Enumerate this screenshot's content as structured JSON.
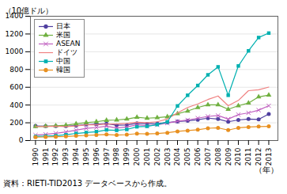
{
  "chart_data": {
    "type": "line",
    "x": [
      1990,
      1991,
      1992,
      1993,
      1994,
      1995,
      1996,
      1997,
      1998,
      1999,
      2000,
      2001,
      2002,
      2003,
      2004,
      2005,
      2006,
      2007,
      2008,
      2009,
      2010,
      2011,
      2012,
      2013
    ],
    "series": [
      {
        "name": "日本",
        "color": "#5040a0",
        "marker": "circle",
        "values": [
          165,
          162,
          162,
          162,
          168,
          180,
          185,
          190,
          172,
          175,
          195,
          188,
          192,
          202,
          215,
          222,
          235,
          252,
          242,
          212,
          232,
          242,
          238,
          298
        ]
      },
      {
        "name": "米国",
        "color": "#70b040",
        "marker": "triangle",
        "values": [
          158,
          162,
          166,
          172,
          188,
          202,
          212,
          228,
          232,
          242,
          262,
          252,
          258,
          268,
          302,
          332,
          372,
          402,
          402,
          352,
          392,
          422,
          492,
          512
        ]
      },
      {
        "name": "ASEAN",
        "color": "#c060c0",
        "marker": "x",
        "values": [
          62,
          70,
          82,
          97,
          117,
          137,
          147,
          162,
          142,
          152,
          177,
          167,
          177,
          197,
          217,
          232,
          252,
          272,
          282,
          242,
          292,
          312,
          342,
          392
        ]
      },
      {
        "name": "ドイツ",
        "color": "#f08080",
        "marker": "none",
        "values": [
          158,
          158,
          162,
          157,
          164,
          177,
          177,
          187,
          187,
          192,
          207,
          202,
          212,
          242,
          312,
          372,
          412,
          462,
          502,
          392,
          452,
          562,
          572,
          602
        ]
      },
      {
        "name": "中国",
        "color": "#00b0b0",
        "marker": "square",
        "values": [
          45,
          50,
          55,
          65,
          80,
          90,
          100,
          120,
          115,
          125,
          155,
          160,
          180,
          210,
          390,
          510,
          620,
          740,
          830,
          510,
          840,
          1010,
          1160,
          1210
        ]
      },
      {
        "name": "韓国",
        "color": "#e89020",
        "marker": "circle",
        "values": [
          38,
          40,
          43,
          46,
          53,
          58,
          63,
          68,
          62,
          67,
          78,
          75,
          80,
          88,
          103,
          112,
          122,
          138,
          143,
          118,
          143,
          152,
          158,
          160
        ]
      }
    ],
    "ylabel": "（10億ドル）",
    "xlabel": "（年）",
    "footnote": "資料：RIETI-TID2013 データベースから作成。",
    "xlim": [
      1989.5,
      2013.9
    ],
    "xticks": [
      1990,
      1991,
      1992,
      1993,
      1994,
      1995,
      1996,
      1997,
      1998,
      1999,
      2000,
      2001,
      2002,
      2003,
      2004,
      2005,
      2006,
      2007,
      2008,
      2009,
      2010,
      2011,
      2012,
      2013
    ],
    "ylim": [
      0,
      1400
    ],
    "yticks": [
      0,
      200,
      400,
      600,
      800,
      1000,
      1200,
      1400
    ],
    "grid": "y",
    "legend": "upper left"
  }
}
